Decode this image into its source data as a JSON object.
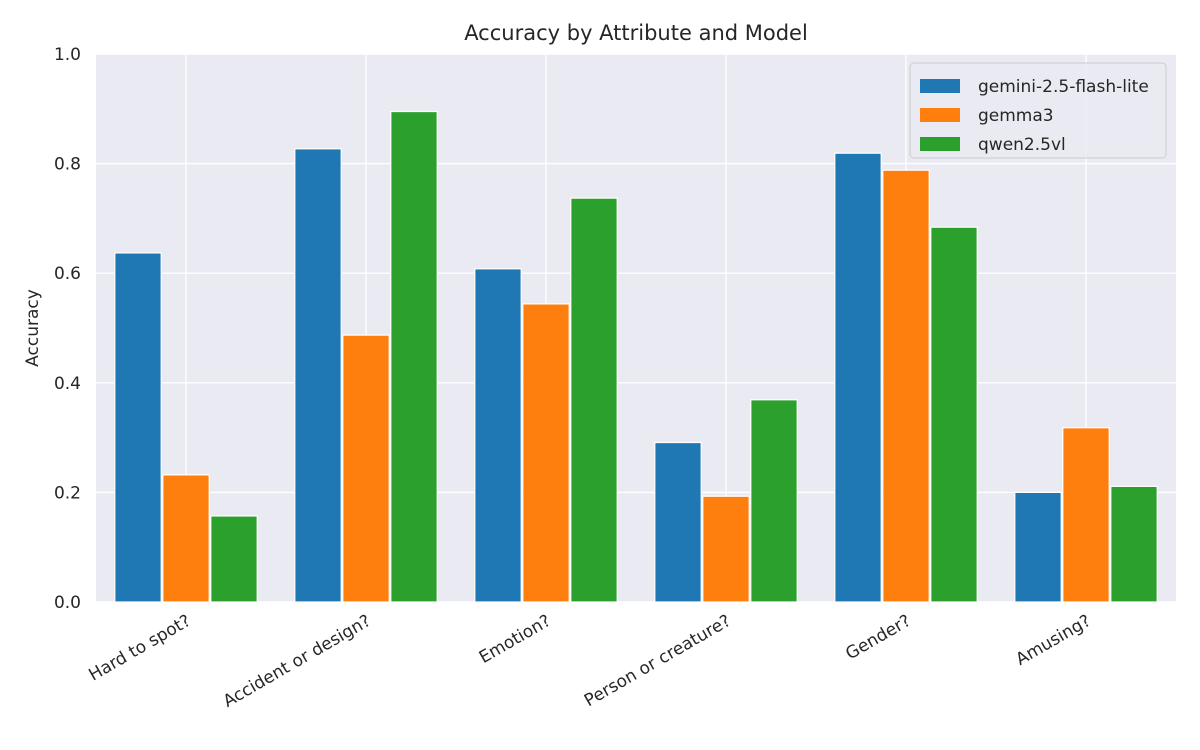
{
  "chart_data": {
    "type": "bar",
    "title": "Accuracy by Attribute and Model",
    "xlabel": "",
    "ylabel": "Accuracy",
    "ylim": [
      0,
      1.0
    ],
    "yticks": [
      "0.0",
      "0.2",
      "0.4",
      "0.6",
      "0.8",
      "1.0"
    ],
    "grid": true,
    "legend_position": "top-right",
    "categories": [
      "Hard to spot?",
      "Accident or design?",
      "Emotion?",
      "Person or creature?",
      "Gender?",
      "Amusing?"
    ],
    "series": [
      {
        "name": "gemini-2.5-flash-lite",
        "color": "#1f77b4",
        "values": [
          0.637,
          0.827,
          0.608,
          0.291,
          0.819,
          0.2
        ]
      },
      {
        "name": "gemma3",
        "color": "#ff7f0e",
        "values": [
          0.232,
          0.487,
          0.544,
          0.193,
          0.788,
          0.318
        ]
      },
      {
        "name": "qwen2.5vl",
        "color": "#2ca02c",
        "values": [
          0.157,
          0.895,
          0.737,
          0.369,
          0.684,
          0.211
        ]
      }
    ]
  }
}
